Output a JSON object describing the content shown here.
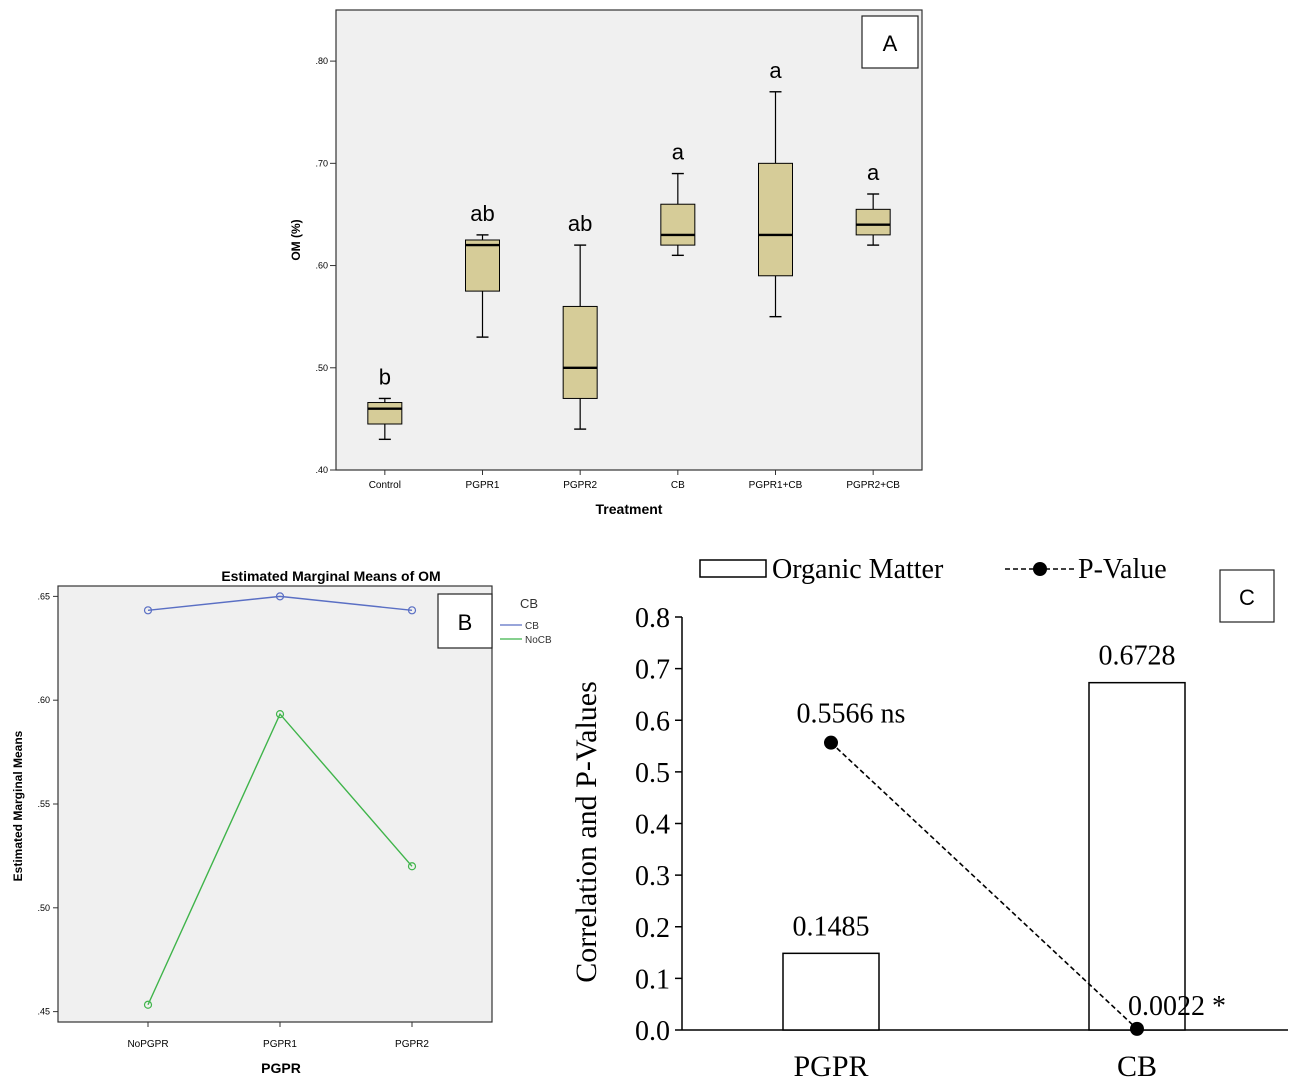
{
  "colors": {
    "box_fill": "#d6cc98",
    "plot_bg": "#f0f0f0",
    "cb_line": "#5a6fc4",
    "nocb_line": "#3fb44a"
  },
  "panel_labels": {
    "a": "A",
    "b": "B",
    "c": "C"
  },
  "chart_data": [
    {
      "type": "box",
      "panel": "A",
      "xlabel": "Treatment",
      "ylabel": "OM (%)",
      "ylim": [
        0.4,
        0.85
      ],
      "yticks": [
        ".40",
        ".50",
        ".60",
        ".70",
        ".80"
      ],
      "categories": [
        "Control",
        "PGPR1",
        "PGPR2",
        "CB",
        "PGPR1+CB",
        "PGPR2+CB"
      ],
      "boxes": [
        {
          "min": 0.43,
          "q1": 0.445,
          "median": 0.46,
          "q3": 0.466,
          "max": 0.47,
          "letter": "b"
        },
        {
          "min": 0.53,
          "q1": 0.575,
          "median": 0.62,
          "q3": 0.625,
          "max": 0.63,
          "letter": "ab"
        },
        {
          "min": 0.44,
          "q1": 0.47,
          "median": 0.5,
          "q3": 0.56,
          "max": 0.62,
          "letter": "ab"
        },
        {
          "min": 0.61,
          "q1": 0.62,
          "median": 0.63,
          "q3": 0.66,
          "max": 0.69,
          "letter": "a"
        },
        {
          "min": 0.55,
          "q1": 0.59,
          "median": 0.63,
          "q3": 0.7,
          "max": 0.77,
          "letter": "a"
        },
        {
          "min": 0.62,
          "q1": 0.63,
          "median": 0.64,
          "q3": 0.655,
          "max": 0.67,
          "letter": "a"
        }
      ]
    },
    {
      "type": "line",
      "panel": "B",
      "title": "Estimated Marginal Means of OM",
      "xlabel": "PGPR",
      "ylabel": "Estimated Marginal Means",
      "ylim": [
        0.445,
        0.655
      ],
      "yticks": [
        ".45",
        ".50",
        ".55",
        ".60",
        ".65"
      ],
      "categories": [
        "NoPGPR",
        "PGPR1",
        "PGPR2"
      ],
      "legend_title": "CB",
      "series": [
        {
          "name": "CB",
          "values": [
            0.6433,
            0.65,
            0.6433
          ]
        },
        {
          "name": "NoCB",
          "values": [
            0.4533,
            0.5933,
            0.52
          ]
        }
      ]
    },
    {
      "type": "bar",
      "panel": "C",
      "ylabel": "Correlation and P-Values",
      "ylim": [
        0,
        0.8
      ],
      "yticks": [
        "0.0",
        "0.1",
        "0.2",
        "0.3",
        "0.4",
        "0.5",
        "0.6",
        "0.7",
        "0.8"
      ],
      "categories": [
        "PGPR",
        "CB"
      ],
      "series": [
        {
          "name": "Organic Matter",
          "values": [
            0.1485,
            0.6728
          ],
          "labels": [
            "0.1485",
            "0.6728"
          ]
        },
        {
          "name": "P-Value",
          "values": [
            0.5566,
            0.0022
          ],
          "labels": [
            "0.5566 ns",
            "0.0022 *"
          ]
        }
      ]
    }
  ]
}
